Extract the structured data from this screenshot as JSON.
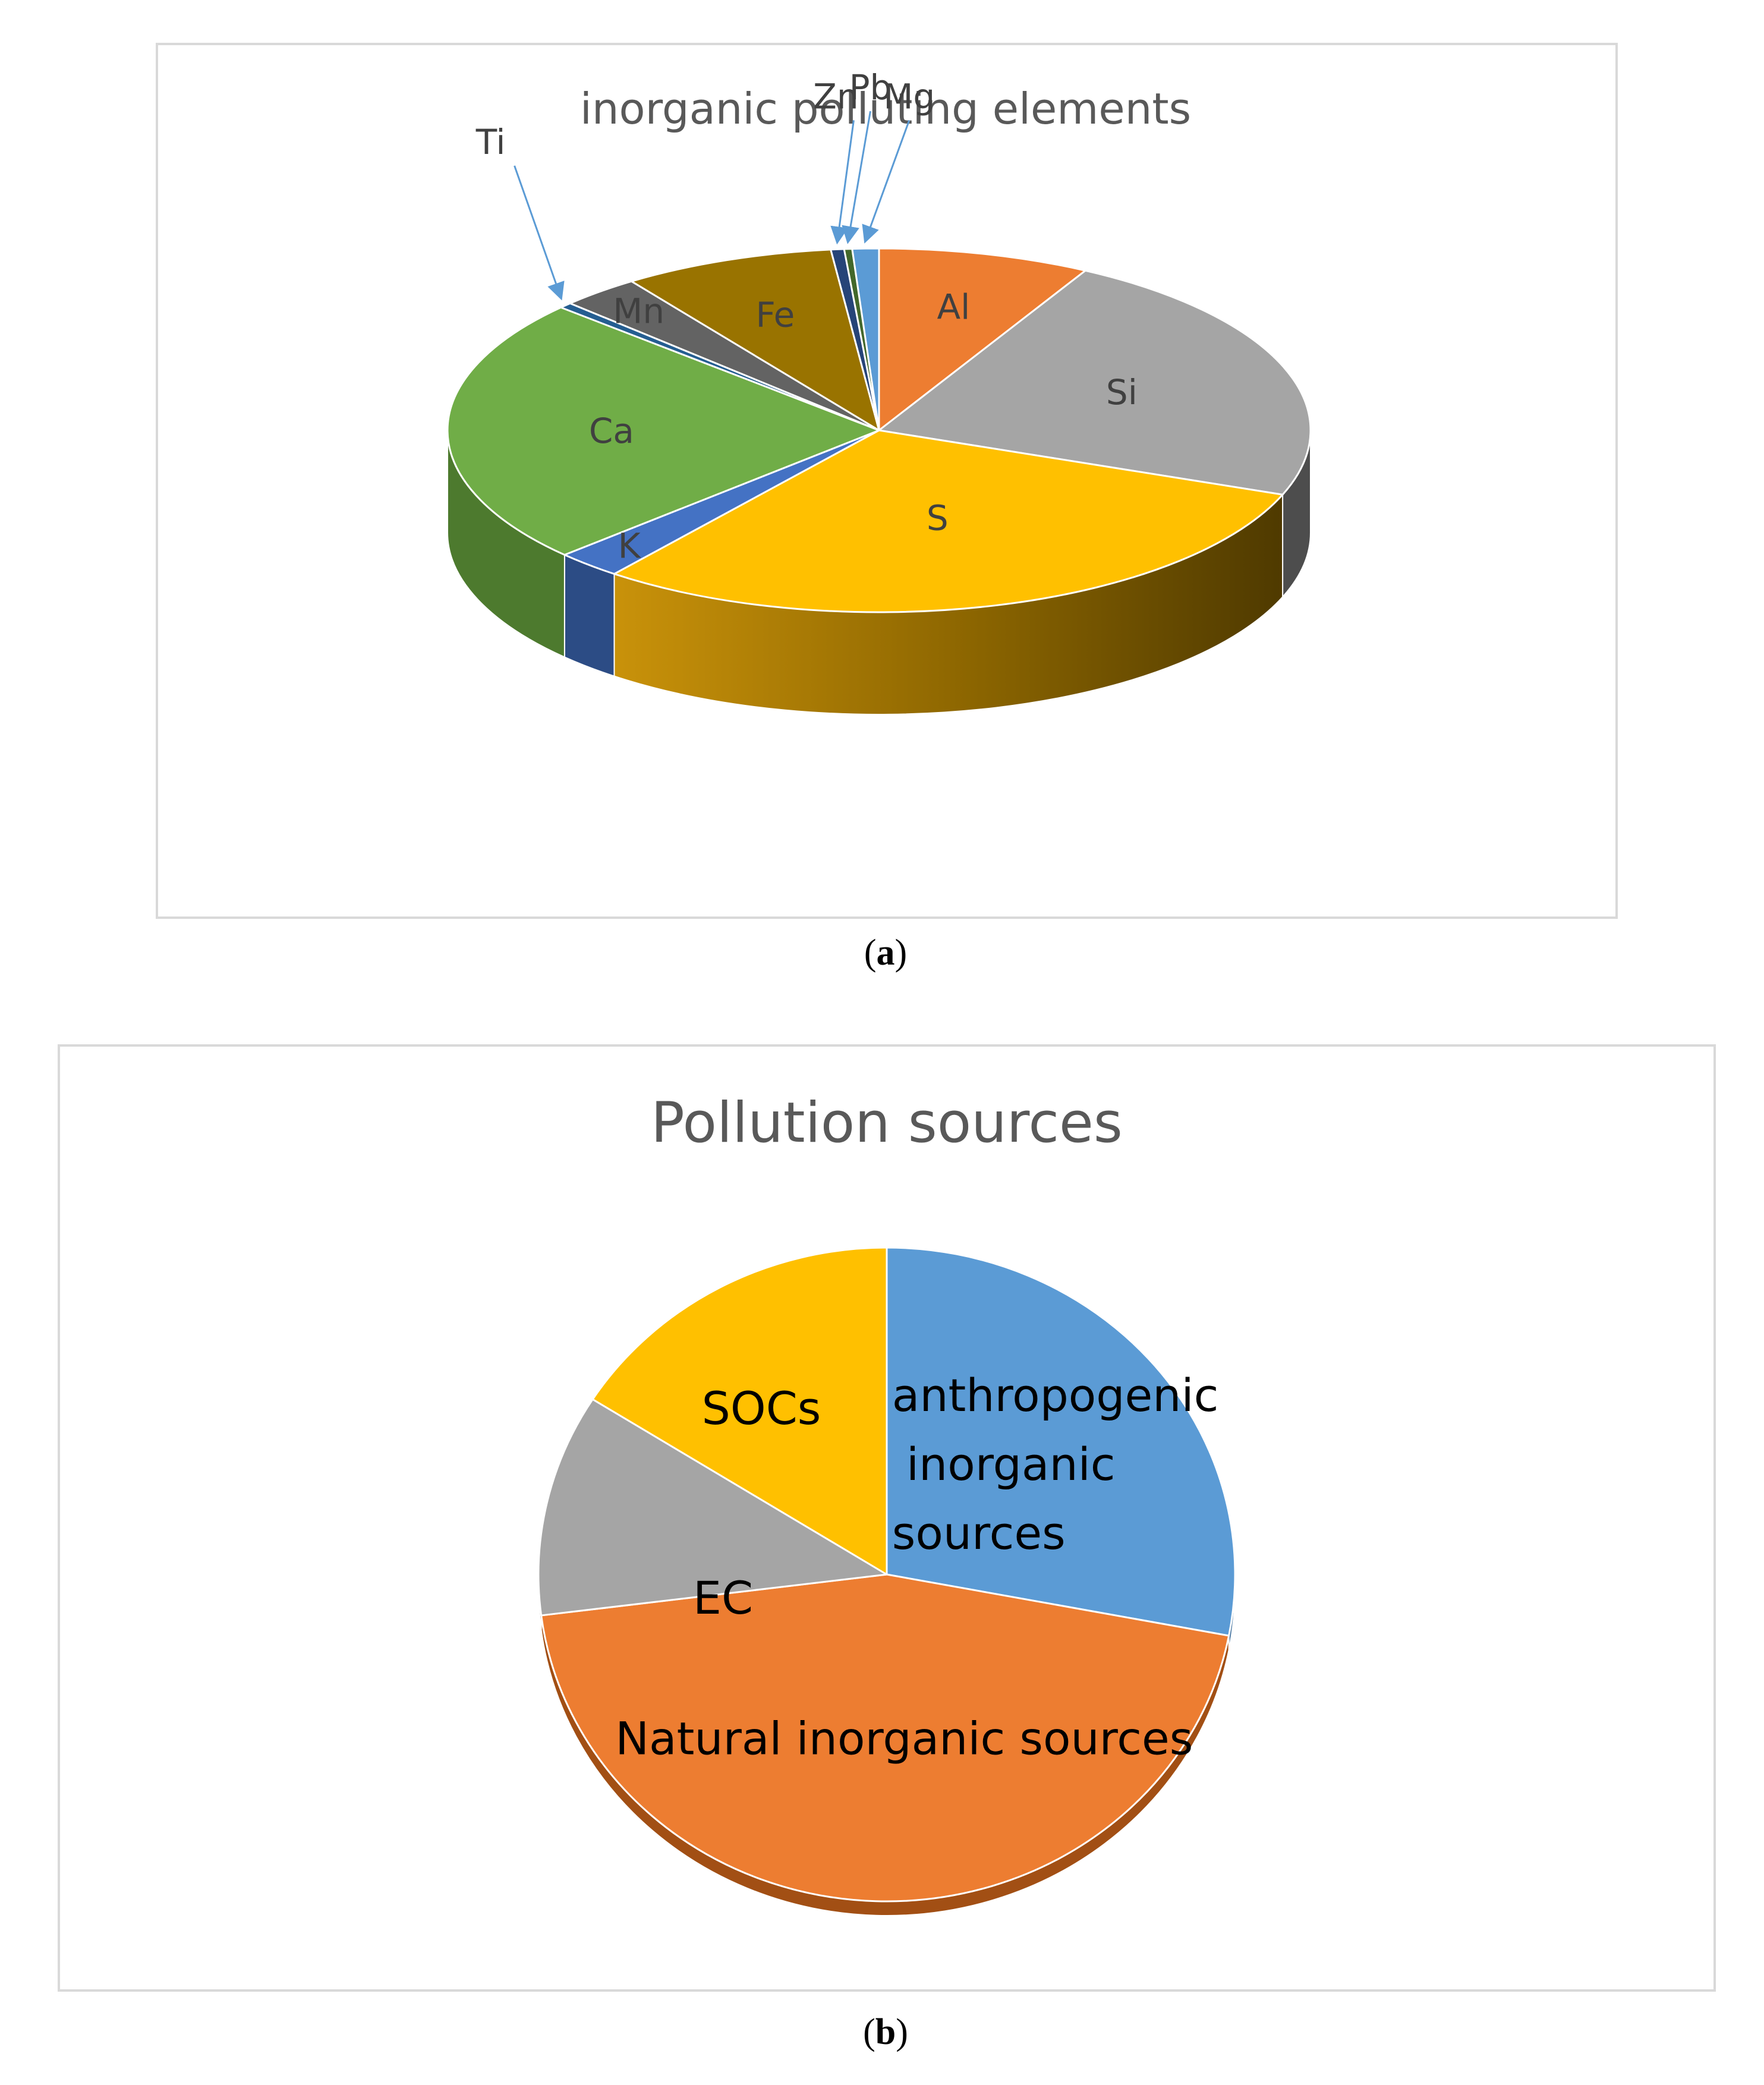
{
  "panels": {
    "a": {
      "caption_open": "(",
      "caption_letter": "a",
      "caption_close": ")"
    },
    "b": {
      "caption_open": "(",
      "caption_letter": "b",
      "caption_close": ")"
    }
  },
  "chart_data": [
    {
      "type": "pie",
      "style": "3d",
      "title": "inorganic polluting elements",
      "labels": [
        "Al",
        "Si",
        "S",
        "K",
        "Ca",
        "Ti",
        "Mn",
        "Fe",
        "Zn",
        "Pb",
        "Mg"
      ],
      "values": [
        8.0,
        23.0,
        30.0,
        2.5,
        24.0,
        0.5,
        3.0,
        8.0,
        0.5,
        0.3,
        1.0
      ],
      "colors": [
        "#ed7d31",
        "#a5a5a5",
        "#ffc000",
        "#4472c4",
        "#70ad47",
        "#255e91",
        "#636363",
        "#997300",
        "#264478",
        "#43682b",
        "#5b9bd5"
      ],
      "side_colors": [
        "#9e521d",
        "#4d4d4d",
        "#a57600",
        "#2c4c85",
        "#4d7a2e",
        "#1b4466",
        "#404040",
        "#664c00",
        "#1b3052",
        "#2e481d",
        "#3d6b94"
      ],
      "label_placement": "inside",
      "callouts": [
        "Ti",
        "Zn",
        "Pb",
        "Mg"
      ],
      "callout_color": "#5b9bd5"
    },
    {
      "type": "pie",
      "style": "3d",
      "title": "Pollution sources",
      "labels": [
        "anthropogenic inorganic sources",
        "Natural inorganic  sources",
        "EC",
        "SOCs"
      ],
      "label_lines": [
        [
          "anthropogenic",
          " inorganic",
          "sources"
        ],
        [
          "Natural inorganic  sources"
        ],
        [
          "EC"
        ],
        [
          "SOCs"
        ]
      ],
      "values": [
        28.0,
        45.0,
        11.0,
        16.0
      ],
      "colors": [
        "#5b9bd5",
        "#ed7d31",
        "#a5a5a5",
        "#ffc000"
      ],
      "side_colors": [
        "#3f6f9c",
        "#a24f14",
        "#6e6e6e",
        "#a88000"
      ],
      "label_placement": "inside"
    }
  ]
}
